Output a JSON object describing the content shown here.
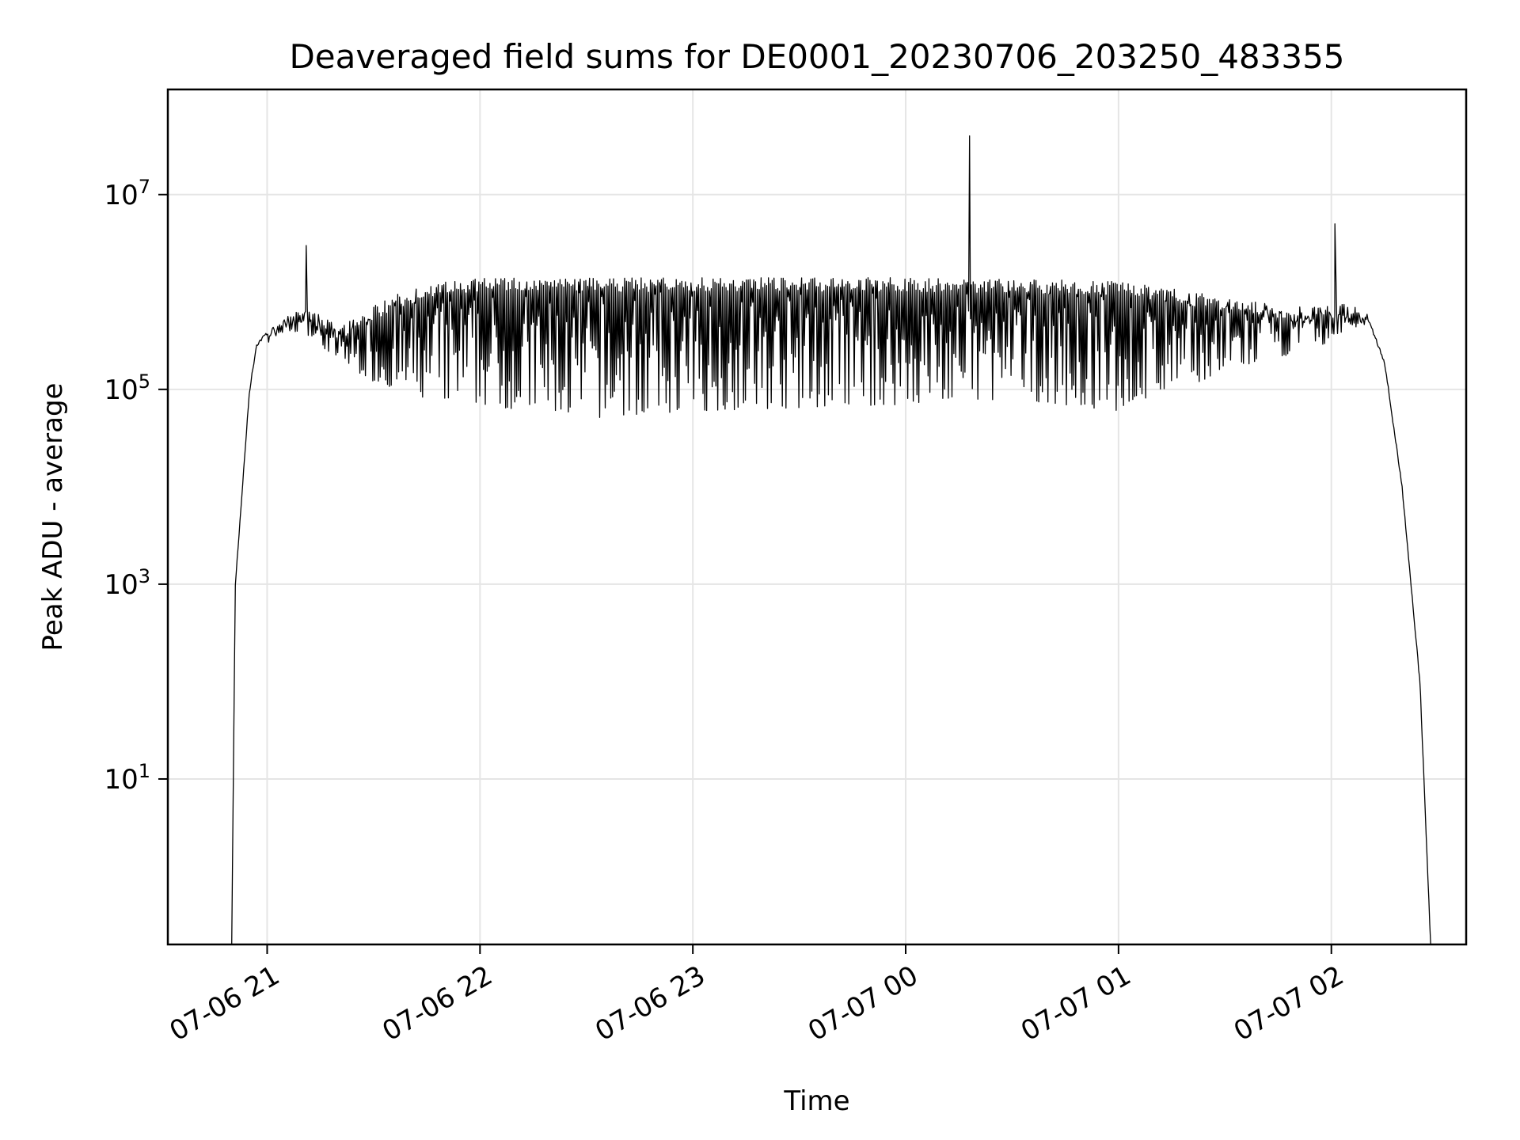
{
  "chart_data": {
    "type": "line",
    "title": "Deaveraged field sums for DE0001_20230706_203250_483355",
    "xlabel": "Time",
    "ylabel": "Peak ADU - average",
    "yscale": "log",
    "ylim": [
      0.2,
      120000000.0
    ],
    "xlim": [
      "2023-07-06 20:32",
      "2023-07-07 02:38"
    ],
    "grid": true,
    "x_ticks": [
      "07-06 21",
      "07-06 22",
      "07-06 23",
      "07-07 00",
      "07-07 01",
      "07-07 02"
    ],
    "x_tick_values": [
      "2023-07-06 21:00",
      "2023-07-06 22:00",
      "2023-07-06 23:00",
      "2023-07-07 00:00",
      "2023-07-07 01:00",
      "2023-07-07 02:00"
    ],
    "y_ticks": [
      {
        "base": "10",
        "exp": "1",
        "value": 10
      },
      {
        "base": "10",
        "exp": "3",
        "value": 1000
      },
      {
        "base": "10",
        "exp": "5",
        "value": 100000
      },
      {
        "base": "10",
        "exp": "7",
        "value": 10000000
      }
    ],
    "series": [
      {
        "color": "#000000",
        "envelope_upper": [
          [
            "2023-07-06 20:50",
            0.2
          ],
          [
            "2023-07-06 20:51",
            1000
          ],
          [
            "2023-07-06 20:53",
            10000
          ],
          [
            "2023-07-06 20:55",
            100000
          ],
          [
            "2023-07-06 20:57",
            300000
          ],
          [
            "2023-07-06 21:00",
            400000
          ],
          [
            "2023-07-06 21:05",
            600000
          ],
          [
            "2023-07-06 21:11",
            700000
          ],
          [
            "2023-07-06 21:20",
            450000
          ],
          [
            "2023-07-06 21:35",
            900000
          ],
          [
            "2023-07-06 21:45",
            1200000
          ],
          [
            "2023-07-06 22:00",
            1400000
          ],
          [
            "2023-07-06 23:00",
            1400000
          ],
          [
            "2023-07-07 00:00",
            1400000
          ],
          [
            "2023-07-07 01:00",
            1300000
          ],
          [
            "2023-07-07 01:30",
            900000
          ],
          [
            "2023-07-07 01:50",
            700000
          ],
          [
            "2023-07-07 02:05",
            750000
          ],
          [
            "2023-07-07 02:10",
            600000
          ],
          [
            "2023-07-07 02:15",
            200000
          ],
          [
            "2023-07-07 02:20",
            10000
          ],
          [
            "2023-07-07 02:25",
            100
          ],
          [
            "2023-07-07 02:28",
            0.2
          ]
        ],
        "envelope_lower": [
          [
            "2023-07-06 21:00",
            350000
          ],
          [
            "2023-07-06 21:10",
            400000
          ],
          [
            "2023-07-06 21:20",
            200000
          ],
          [
            "2023-07-06 21:30",
            120000
          ],
          [
            "2023-07-06 21:40",
            80000
          ],
          [
            "2023-07-06 22:00",
            70000
          ],
          [
            "2023-07-06 22:30",
            50000
          ],
          [
            "2023-07-06 23:00",
            60000
          ],
          [
            "2023-07-07 00:00",
            70000
          ],
          [
            "2023-07-07 00:30",
            80000
          ],
          [
            "2023-07-07 01:00",
            60000
          ],
          [
            "2023-07-07 01:30",
            150000
          ],
          [
            "2023-07-07 02:00",
            300000
          ],
          [
            "2023-07-07 02:10",
            500000
          ]
        ],
        "spikes": [
          [
            "2023-07-06 21:11",
            3000000
          ],
          [
            "2023-07-07 00:18",
            40000000
          ],
          [
            "2023-07-07 02:01",
            5000000
          ]
        ]
      }
    ]
  }
}
